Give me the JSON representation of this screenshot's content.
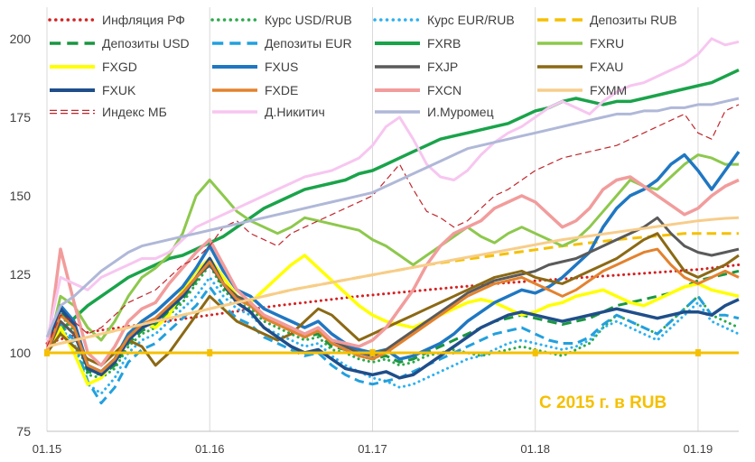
{
  "chart_data": {
    "type": "line",
    "title": "",
    "xlabel": "",
    "ylabel": "",
    "annotation": "С 2015 г. в RUB",
    "annotation_color": "#F5C000",
    "ylim": [
      75,
      210
    ],
    "yticks": [
      75,
      100,
      125,
      150,
      175,
      200
    ],
    "xlim": [
      0,
      51
    ],
    "xtick_positions": [
      0,
      12,
      24,
      36,
      48
    ],
    "xtick_labels": [
      "01.15",
      "01.16",
      "01.17",
      "01.18",
      "01.19"
    ],
    "grid": "vertical",
    "legend_position": "top",
    "series": [
      {
        "name": "Инфляция РФ",
        "color": "#D62020",
        "style": "dotted",
        "width": 3,
        "values": [
          103,
          104.3,
          105.5,
          106.5,
          107.2,
          107.8,
          108.4,
          109,
          109.6,
          110.2,
          110.8,
          111.4,
          112,
          112.6,
          113.2,
          113.8,
          114.4,
          115,
          115.5,
          116,
          116.5,
          117,
          117.5,
          118,
          118.4,
          118.8,
          119.2,
          119.6,
          120,
          120.4,
          120.8,
          121.2,
          121.6,
          122,
          122.3,
          122.6,
          122.9,
          123.2,
          123.5,
          123.8,
          124.1,
          124.4,
          124.7,
          125,
          125.3,
          125.6,
          125.9,
          126.2,
          126.5,
          127,
          127.5,
          128
        ]
      },
      {
        "name": "Курс USD/RUB",
        "color": "#2BAA4A",
        "style": "dotted",
        "width": 3,
        "values": [
          100,
          112,
          107,
          93,
          92,
          95,
          102,
          106,
          108,
          112,
          116,
          122,
          128,
          120,
          116,
          114,
          110,
          108,
          106,
          104,
          105,
          101,
          100,
          98,
          97,
          98,
          96,
          97,
          99,
          100,
          101,
          100,
          99,
          100,
          101,
          102,
          101,
          100,
          99,
          101,
          103,
          108,
          112,
          110,
          108,
          106,
          110,
          114,
          118,
          112,
          110,
          108
        ]
      },
      {
        "name": "Курс EUR/RUB",
        "color": "#2BB0F0",
        "style": "dotted",
        "width": 3,
        "values": [
          100,
          108,
          103,
          90,
          87,
          92,
          100,
          104,
          106,
          110,
          114,
          118,
          124,
          118,
          114,
          112,
          108,
          106,
          104,
          102,
          103,
          99,
          96,
          94,
          92,
          91,
          89,
          90,
          92,
          94,
          96,
          98,
          99,
          101,
          103,
          104,
          103,
          102,
          101,
          102,
          104,
          108,
          110,
          108,
          106,
          104,
          108,
          112,
          116,
          110,
          108,
          106
        ]
      },
      {
        "name": "Депозиты RUB",
        "color": "#F5C000",
        "style": "dashed",
        "width": 3,
        "values": [
          102,
          103,
          104,
          105,
          106,
          107,
          108,
          109,
          110,
          111,
          112,
          113,
          114,
          115,
          116,
          117,
          118,
          119,
          120,
          120.8,
          121.6,
          122.4,
          123.2,
          124,
          124.8,
          125.6,
          126.4,
          127.2,
          128,
          128.6,
          129.2,
          129.8,
          130.4,
          131,
          131.6,
          132.2,
          132.8,
          133.4,
          134,
          134.5,
          135,
          135.5,
          136,
          136.4,
          136.8,
          137.2,
          137.6,
          138,
          138,
          138,
          138,
          138
        ]
      },
      {
        "name": "Депозиты USD",
        "color": "#1A9641",
        "style": "dashed",
        "width": 3,
        "values": [
          100,
          113,
          108,
          94,
          93,
          96,
          103,
          107,
          109,
          113,
          117,
          123,
          129,
          121,
          117,
          115,
          111,
          109,
          107,
          105,
          106,
          102,
          101,
          99,
          98,
          99,
          97,
          98,
          100,
          102,
          104,
          106,
          108,
          110,
          111,
          112,
          111,
          110,
          109,
          110,
          111,
          113,
          115,
          116,
          117,
          118,
          119,
          121,
          123,
          124,
          125,
          126
        ]
      },
      {
        "name": "Депозиты EUR",
        "color": "#22A0DE",
        "style": "dashed",
        "width": 3,
        "values": [
          100,
          109,
          104,
          91,
          84,
          89,
          97,
          101,
          103,
          107,
          111,
          115,
          121,
          115,
          111,
          109,
          105,
          103,
          101,
          99,
          100,
          96,
          93,
          91,
          90,
          91,
          92,
          94,
          96,
          98,
          100,
          102,
          104,
          106,
          107,
          108,
          106,
          104,
          103,
          103,
          105,
          109,
          112,
          110,
          108,
          106,
          110,
          114,
          118,
          112,
          112,
          111
        ]
      },
      {
        "name": "FXRB",
        "color": "#1AA34A",
        "style": "solid",
        "width": 3.5,
        "values": [
          100,
          107,
          111,
          115,
          118,
          121,
          124,
          126,
          128,
          130,
          131,
          133,
          135,
          137,
          140,
          143,
          146,
          148,
          150,
          152,
          153,
          154,
          155,
          157,
          158,
          160,
          162,
          164,
          166,
          168,
          169,
          170,
          171,
          172,
          173,
          175,
          177,
          178,
          180,
          181,
          180,
          179,
          180,
          180,
          181,
          182,
          183,
          184,
          185,
          186,
          188,
          190
        ]
      },
      {
        "name": "FXRU",
        "color": "#8DC84C",
        "style": "solid",
        "width": 3,
        "values": [
          100,
          118,
          115,
          108,
          104,
          110,
          118,
          124,
          127,
          131,
          138,
          150,
          155,
          150,
          145,
          142,
          140,
          138,
          140,
          143,
          142,
          141,
          140,
          139,
          136,
          134,
          131,
          128,
          131,
          134,
          137,
          140,
          137,
          135,
          138,
          140,
          138,
          136,
          134,
          136,
          140,
          145,
          150,
          155,
          153,
          152,
          156,
          160,
          163,
          162,
          160,
          160
        ]
      },
      {
        "name": "FXGD",
        "color": "#FFFF00",
        "style": "solid",
        "width": 3.5,
        "values": [
          100,
          108,
          100,
          90,
          92,
          98,
          106,
          110,
          108,
          112,
          120,
          126,
          130,
          124,
          118,
          116,
          120,
          124,
          128,
          131,
          127,
          123,
          119,
          115,
          112,
          110,
          109,
          108,
          110,
          112,
          114,
          116,
          117,
          116,
          114,
          112,
          113,
          115,
          116,
          118,
          119,
          120,
          118,
          116,
          115,
          117,
          119,
          121,
          122,
          120,
          119,
          118
        ]
      },
      {
        "name": "FXUS",
        "color": "#1F77C2",
        "style": "solid",
        "width": 3.5,
        "values": [
          100,
          115,
          110,
          96,
          94,
          98,
          106,
          110,
          113,
          117,
          121,
          127,
          134,
          126,
          120,
          118,
          114,
          112,
          110,
          108,
          110,
          106,
          103,
          101,
          100,
          101,
          98,
          99,
          101,
          103,
          106,
          110,
          113,
          116,
          118,
          120,
          119,
          121,
          124,
          128,
          132,
          140,
          146,
          150,
          152,
          155,
          160,
          163,
          158,
          152,
          158,
          164
        ]
      },
      {
        "name": "FXJP",
        "color": "#5A5A5A",
        "style": "solid",
        "width": 3,
        "values": [
          100,
          110,
          106,
          95,
          94,
          98,
          105,
          109,
          111,
          115,
          119,
          124,
          128,
          122,
          118,
          116,
          112,
          110,
          108,
          106,
          108,
          104,
          102,
          100,
          99,
          101,
          104,
          107,
          110,
          113,
          116,
          119,
          121,
          123,
          124,
          125,
          126,
          128,
          129,
          130,
          132,
          134,
          136,
          138,
          140,
          143,
          138,
          134,
          132,
          131,
          132,
          133
        ]
      },
      {
        "name": "FXAU",
        "color": "#8B6914",
        "style": "solid",
        "width": 3,
        "values": [
          100,
          106,
          102,
          98,
          96,
          100,
          104,
          102,
          96,
          100,
          106,
          112,
          118,
          114,
          110,
          108,
          106,
          104,
          106,
          110,
          114,
          112,
          108,
          104,
          106,
          108,
          110,
          112,
          114,
          116,
          118,
          120,
          122,
          124,
          125,
          126,
          124,
          123,
          122,
          124,
          126,
          128,
          130,
          133,
          136,
          138,
          132,
          126,
          124,
          126,
          128,
          131
        ]
      },
      {
        "name": "FXUK",
        "color": "#1F4E8A",
        "style": "solid",
        "width": 3.5,
        "values": [
          100,
          114,
          109,
          95,
          93,
          97,
          104,
          108,
          110,
          114,
          118,
          124,
          130,
          122,
          116,
          113,
          108,
          105,
          102,
          100,
          101,
          98,
          95,
          94,
          93,
          94,
          92,
          93,
          96,
          99,
          102,
          105,
          108,
          110,
          112,
          113,
          112,
          111,
          110,
          111,
          112,
          113,
          114,
          113,
          112,
          111,
          112,
          113,
          113,
          112,
          115,
          117
        ]
      },
      {
        "name": "FXDE",
        "color": "#E3822E",
        "style": "solid",
        "width": 3,
        "values": [
          100,
          112,
          108,
          96,
          94,
          98,
          105,
          109,
          111,
          115,
          119,
          124,
          129,
          122,
          117,
          115,
          111,
          109,
          107,
          105,
          107,
          103,
          101,
          99,
          98,
          100,
          103,
          106,
          109,
          112,
          115,
          118,
          120,
          122,
          123,
          124,
          122,
          120,
          118,
          120,
          123,
          126,
          128,
          130,
          132,
          133,
          128,
          124,
          122,
          124,
          126,
          124
        ]
      },
      {
        "name": "FXCN",
        "color": "#F29C9C",
        "style": "solid",
        "width": 3.5,
        "values": [
          100,
          133,
          116,
          100,
          96,
          102,
          110,
          114,
          116,
          122,
          127,
          132,
          136,
          128,
          120,
          116,
          112,
          110,
          108,
          106,
          108,
          104,
          103,
          102,
          104,
          108,
          114,
          120,
          128,
          134,
          138,
          140,
          142,
          146,
          148,
          150,
          148,
          144,
          140,
          142,
          146,
          152,
          155,
          156,
          153,
          150,
          147,
          144,
          146,
          150,
          153,
          155
        ]
      },
      {
        "name": "FXMM",
        "color": "#F7CD8A",
        "style": "solid",
        "width": 3,
        "values": [
          102,
          103,
          104,
          105,
          106,
          107,
          108,
          109,
          110,
          111,
          112,
          113,
          114,
          115,
          116,
          117,
          118,
          119,
          120,
          120.8,
          121.6,
          122.4,
          123.2,
          124,
          124.8,
          125.6,
          126.4,
          127.2,
          128,
          128.8,
          129.6,
          130.4,
          131.2,
          132,
          132.8,
          133.6,
          134.4,
          135.2,
          136,
          136.6,
          137.2,
          137.8,
          138.4,
          139,
          139.6,
          140.2,
          140.8,
          141.4,
          142,
          142.4,
          142.8,
          143
        ]
      },
      {
        "name": "Индекс МБ",
        "color": "#C0272D",
        "style": "dashed-outline",
        "width": 3,
        "values": [
          102,
          112,
          110,
          106,
          108,
          112,
          116,
          118,
          120,
          124,
          128,
          130,
          134,
          140,
          142,
          138,
          136,
          134,
          138,
          140,
          142,
          144,
          146,
          148,
          150,
          155,
          160,
          152,
          145,
          143,
          140,
          142,
          146,
          150,
          152,
          155,
          158,
          160,
          162,
          163,
          164,
          165,
          166,
          168,
          170,
          172,
          174,
          176,
          170,
          168,
          177,
          179
        ]
      },
      {
        "name": "Д.Никитич",
        "color": "#F7C6F0",
        "style": "solid",
        "width": 3,
        "values": [
          104,
          124,
          122,
          120,
          124,
          126,
          128,
          130,
          130,
          132,
          136,
          140,
          142,
          144,
          146,
          148,
          150,
          152,
          154,
          156,
          157,
          158,
          160,
          162,
          166,
          172,
          175,
          168,
          160,
          156,
          155,
          158,
          163,
          167,
          170,
          172,
          175,
          178,
          180,
          178,
          176,
          180,
          183,
          185,
          186,
          188,
          190,
          192,
          195,
          200,
          198,
          199
        ]
      },
      {
        "name": "И.Муромец",
        "color": "#B0B8D8",
        "style": "solid",
        "width": 3,
        "values": [
          105,
          115,
          118,
          122,
          126,
          129,
          132,
          134,
          135,
          136,
          137,
          138,
          139,
          140,
          141,
          142,
          143,
          144,
          145,
          146,
          147,
          148,
          149,
          150,
          151,
          153,
          155,
          157,
          159,
          161,
          163,
          165,
          166,
          167,
          168,
          169,
          170,
          171,
          172,
          173,
          174,
          175,
          176,
          176,
          177,
          177,
          178,
          178,
          179,
          179,
          180,
          181
        ]
      }
    ]
  }
}
